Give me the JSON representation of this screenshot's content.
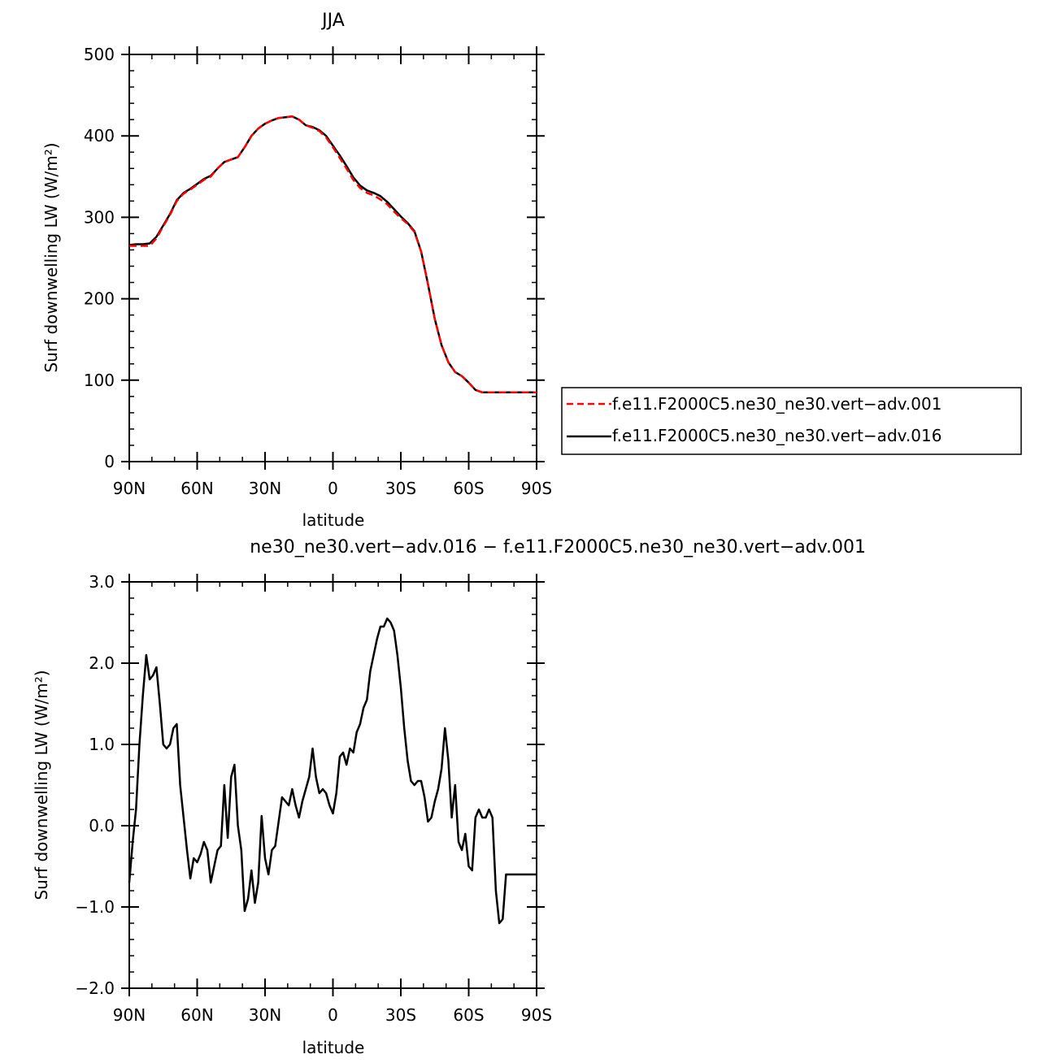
{
  "figure": {
    "title_top": "JJA",
    "title_bottom": "ne30_ne30.vert−adv.016 − f.e11.F2000C5.ne30_ne30.vert−adv.001"
  },
  "colors": {
    "case1": "#ff0000",
    "case2": "#000000",
    "axis": "#000000"
  },
  "chart_data": [
    {
      "type": "line",
      "title": "JJA",
      "xlabel": "latitude",
      "ylabel": "Surf downwelling LW (W/m²)",
      "xlim": [
        90,
        -90
      ],
      "ylim": [
        0,
        500
      ],
      "xticks": [
        90,
        60,
        30,
        0,
        -30,
        -60,
        -90
      ],
      "xticklabels": [
        "90N",
        "60N",
        "30N",
        "0",
        "30S",
        "60S",
        "90S"
      ],
      "yticks": [
        0,
        100,
        200,
        300,
        400,
        500
      ],
      "yticklabels": [
        "0",
        "100",
        "200",
        "300",
        "400",
        "500"
      ],
      "legend": "right",
      "x": [
        90,
        87,
        84,
        81,
        78,
        75,
        72,
        69,
        66,
        63,
        60,
        57,
        54,
        51,
        48,
        45,
        42,
        39,
        36,
        33,
        30,
        27,
        24,
        21,
        18,
        15,
        12,
        9,
        6,
        3,
        0,
        -3,
        -6,
        -9,
        -12,
        -15,
        -18,
        -21,
        -24,
        -27,
        -30,
        -33,
        -36,
        -39,
        -42,
        -45,
        -48,
        -51,
        -54,
        -57,
        -60,
        -63,
        -66,
        -69,
        -72,
        -75,
        -78,
        -81,
        -84,
        -87,
        -90
      ],
      "series": [
        {
          "name": "f.e11.F2000C5.ne30_ne30.vert−adv.001",
          "color": "#ff0000",
          "dash": "dashed",
          "values": [
            265,
            265,
            265,
            265,
            274,
            289,
            303,
            320,
            329,
            334,
            340,
            346,
            350,
            360,
            368,
            371,
            374,
            386,
            400,
            409,
            415,
            419,
            422,
            423,
            424,
            420,
            413,
            410,
            406,
            398,
            386,
            373,
            360,
            346,
            336,
            330,
            327,
            322,
            316,
            307,
            299,
            292,
            282,
            258,
            218,
            175,
            143,
            122,
            110,
            105,
            97,
            88,
            85,
            85,
            85,
            85,
            85,
            85,
            85,
            85,
            85
          ]
        },
        {
          "name": "f.e11.F2000C5.ne30_ne30.vert−adv.016",
          "color": "#000000",
          "dash": "solid",
          "values": [
            266,
            267,
            267,
            268,
            276,
            290,
            304,
            321,
            330,
            335,
            341,
            347,
            351,
            360,
            368,
            371,
            374,
            386,
            400,
            409,
            415,
            419,
            422,
            423,
            424,
            420,
            413,
            411,
            407,
            400,
            388,
            376,
            363,
            349,
            339,
            333,
            330,
            326,
            319,
            310,
            301,
            293,
            283,
            258,
            218,
            175,
            143,
            122,
            110,
            105,
            97,
            88,
            85,
            85,
            85,
            85,
            85,
            85,
            85,
            85,
            85
          ]
        }
      ]
    },
    {
      "type": "line",
      "title": "ne30_ne30.vert−adv.016 − f.e11.F2000C5.ne30_ne30.vert−adv.001",
      "xlabel": "latitude",
      "ylabel": "Surf downwelling LW (W/m²)",
      "xlim": [
        90,
        -90
      ],
      "ylim": [
        -2.0,
        3.0
      ],
      "xticks": [
        90,
        60,
        30,
        0,
        -30,
        -60,
        -90
      ],
      "xticklabels": [
        "90N",
        "60N",
        "30N",
        "0",
        "30S",
        "60S",
        "90S"
      ],
      "yticks": [
        -2.0,
        -1.0,
        0.0,
        1.0,
        2.0,
        3.0
      ],
      "yticklabels": [
        "−2.0",
        "−1.0",
        "0.0",
        "1.0",
        "2.0",
        "3.0"
      ],
      "x": [
        90,
        88.5,
        87,
        85.5,
        84,
        82.5,
        81,
        79.5,
        78,
        76.5,
        75,
        73.5,
        72,
        70.5,
        69,
        67.5,
        66,
        64.5,
        63,
        61.5,
        60,
        58.5,
        57,
        55.5,
        54,
        52.5,
        51,
        49.5,
        48,
        46.5,
        45,
        43.5,
        42,
        40.5,
        39,
        37.5,
        36,
        34.5,
        33,
        31.5,
        30,
        28.5,
        27,
        25.5,
        24,
        22.5,
        21,
        19.5,
        18,
        16.5,
        15,
        13.5,
        12,
        10.5,
        9,
        7.5,
        6,
        4.5,
        3,
        1.5,
        0,
        -1.5,
        -3,
        -4.5,
        -6,
        -7.5,
        -9,
        -10.5,
        -12,
        -13.5,
        -15,
        -16.5,
        -18,
        -19.5,
        -21,
        -22.5,
        -24,
        -25.5,
        -27,
        -28.5,
        -30,
        -31.5,
        -33,
        -34.5,
        -36,
        -37.5,
        -39,
        -40.5,
        -42,
        -43.5,
        -45,
        -46.5,
        -48,
        -49.5,
        -51,
        -52.5,
        -54,
        -55.5,
        -57,
        -58.5,
        -60,
        -61.5,
        -63,
        -64.5,
        -66,
        -67.5,
        -69,
        -70.5,
        -72,
        -73.5,
        -75,
        -76.5,
        -78,
        -79.5,
        -81,
        -82.5,
        -84,
        -85.5,
        -87,
        -88.5,
        -90
      ],
      "series": [
        {
          "name": "",
          "color": "#000000",
          "values": [
            -0.7,
            -0.2,
            0.2,
            1.0,
            1.6,
            2.1,
            1.8,
            1.85,
            1.95,
            1.5,
            1.0,
            0.95,
            1.0,
            1.2,
            1.25,
            0.5,
            0.1,
            -0.3,
            -0.65,
            -0.4,
            -0.45,
            -0.35,
            -0.2,
            -0.3,
            -0.7,
            -0.5,
            -0.3,
            -0.25,
            0.5,
            -0.15,
            0.6,
            0.75,
            0.0,
            -0.3,
            -1.05,
            -0.9,
            -0.55,
            -0.95,
            -0.7,
            0.12,
            -0.4,
            -0.6,
            -0.3,
            -0.25,
            0.05,
            0.35,
            0.3,
            0.25,
            0.45,
            0.25,
            0.1,
            0.3,
            0.45,
            0.6,
            0.95,
            0.6,
            0.4,
            0.45,
            0.4,
            0.25,
            0.15,
            0.4,
            0.85,
            0.9,
            0.75,
            0.95,
            0.9,
            1.15,
            1.25,
            1.45,
            1.55,
            1.9,
            2.1,
            2.3,
            2.45,
            2.45,
            2.55,
            2.5,
            2.4,
            2.1,
            1.7,
            1.2,
            0.8,
            0.55,
            0.5,
            0.55,
            0.55,
            0.35,
            0.05,
            0.1,
            0.3,
            0.45,
            0.7,
            1.2,
            0.8,
            0.1,
            0.5,
            -0.2,
            -0.3,
            -0.1,
            -0.5,
            -0.55,
            0.1,
            0.2,
            0.1,
            0.1,
            0.2,
            0.1,
            -0.8,
            -1.2,
            -1.15,
            -0.6,
            -0.6,
            -0.6,
            -0.6,
            -0.6,
            -0.6,
            -0.6,
            -0.6,
            -0.6,
            -0.6
          ]
        }
      ]
    }
  ]
}
